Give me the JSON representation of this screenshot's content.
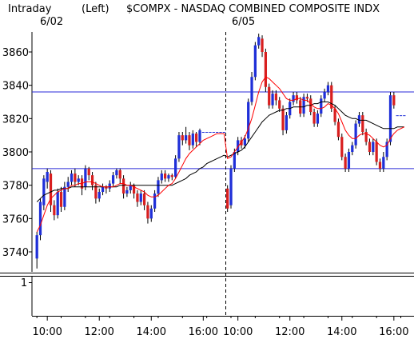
{
  "header": {
    "left_label": "Intraday",
    "panel_label": "(Left)",
    "title": "$COMPX - NASDAQ COMBINED COMPOSITE INDX",
    "date_1": "6/02",
    "date_2": "6/05"
  },
  "lower_panel": {
    "tick_label": "1"
  },
  "colors": {
    "up": "#1f2fd8",
    "down": "#d81f1f",
    "level_line": "#2a2ad8",
    "ma_short": "#ff0000",
    "ma_long": "#000000",
    "axis": "#000000",
    "grid_tick": "#000000"
  },
  "chart_data": {
    "type": "candlestick",
    "title": "$COMPX - NASDAQ COMBINED COMPOSITE INDX",
    "interval": "Intraday",
    "sessions": [
      "6/02",
      "6/05"
    ],
    "x_tick_labels": [
      "10:00",
      "12:00",
      "14:00",
      "16:00",
      "10:00",
      "12:00",
      "14:00",
      "16:00"
    ],
    "y_ticks": [
      3740,
      3760,
      3780,
      3800,
      3820,
      3840,
      3860
    ],
    "ylim": [
      3728,
      3872
    ],
    "grid": false,
    "horizontal_levels": [
      3836,
      3790
    ],
    "session_divider_after_index": 54,
    "candles": [
      [
        3736,
        3750,
        3730,
        3752
      ],
      [
        3750,
        3770,
        3747,
        3772
      ],
      [
        3768,
        3784,
        3765,
        3786
      ],
      [
        3782,
        3788,
        3778,
        3790
      ],
      [
        3787,
        3768,
        3764,
        3789
      ],
      [
        3768,
        3762,
        3759,
        3771
      ],
      [
        3762,
        3776,
        3760,
        3778
      ],
      [
        3776,
        3767,
        3764,
        3779
      ],
      [
        3767,
        3779,
        3765,
        3782
      ],
      [
        3779,
        3782,
        3776,
        3785
      ],
      [
        3782,
        3787,
        3780,
        3789
      ],
      [
        3787,
        3782,
        3779,
        3790
      ],
      [
        3782,
        3784,
        3780,
        3786
      ],
      [
        3784,
        3778,
        3774,
        3786
      ],
      [
        3779,
        3790,
        3777,
        3792
      ],
      [
        3790,
        3786,
        3783,
        3791
      ],
      [
        3786,
        3780,
        3777,
        3788
      ],
      [
        3780,
        3772,
        3769,
        3782
      ],
      [
        3772,
        3776,
        3770,
        3778
      ],
      [
        3776,
        3779,
        3774,
        3781
      ],
      [
        3779,
        3778,
        3775,
        3780
      ],
      [
        3778,
        3781,
        3776,
        3783
      ],
      [
        3781,
        3786,
        3779,
        3788
      ],
      [
        3786,
        3789,
        3784,
        3790
      ],
      [
        3789,
        3784,
        3781,
        3790
      ],
      [
        3784,
        3775,
        3772,
        3786
      ],
      [
        3775,
        3777,
        3773,
        3779
      ],
      [
        3777,
        3780,
        3775,
        3782
      ],
      [
        3780,
        3775,
        3772,
        3781
      ],
      [
        3775,
        3770,
        3767,
        3777
      ],
      [
        3770,
        3775,
        3768,
        3777
      ],
      [
        3775,
        3768,
        3765,
        3777
      ],
      [
        3768,
        3760,
        3757,
        3770
      ],
      [
        3760,
        3766,
        3758,
        3768
      ],
      [
        3766,
        3775,
        3764,
        3777
      ],
      [
        3775,
        3783,
        3773,
        3785
      ],
      [
        3783,
        3787,
        3781,
        3789
      ],
      [
        3787,
        3784,
        3782,
        3789
      ],
      [
        3784,
        3786,
        3782,
        3787
      ],
      [
        3786,
        3785,
        3783,
        3787
      ],
      [
        3785,
        3796,
        3784,
        3798
      ],
      [
        3796,
        3810,
        3794,
        3812
      ],
      [
        3810,
        3807,
        3804,
        3812
      ],
      [
        3807,
        3810,
        3805,
        3815
      ],
      [
        3810,
        3804,
        3801,
        3812
      ],
      [
        3804,
        3811,
        3802,
        3813
      ],
      [
        3811,
        3806,
        3803,
        3812
      ],
      [
        3806,
        3813,
        3804,
        3814
      ],
      [
        3812,
        3812,
        3812,
        3812
      ],
      [
        3812,
        3812,
        3812,
        3812
      ],
      [
        3812,
        3812,
        3812,
        3812
      ],
      [
        3812,
        3812,
        3812,
        3812
      ],
      [
        3812,
        3812,
        3812,
        3812
      ],
      [
        3812,
        3812,
        3812,
        3812
      ],
      [
        3812,
        3812,
        3812,
        3812
      ],
      [
        3778,
        3766,
        3764,
        3780
      ],
      [
        3768,
        3790,
        3766,
        3792
      ],
      [
        3790,
        3800,
        3788,
        3802
      ],
      [
        3800,
        3807,
        3798,
        3809
      ],
      [
        3807,
        3804,
        3802,
        3809
      ],
      [
        3804,
        3808,
        3802,
        3810
      ],
      [
        3808,
        3830,
        3806,
        3832
      ],
      [
        3830,
        3845,
        3828,
        3848
      ],
      [
        3845,
        3864,
        3843,
        3866
      ],
      [
        3864,
        3869,
        3862,
        3871
      ],
      [
        3868,
        3860,
        3857,
        3870
      ],
      [
        3860,
        3839,
        3836,
        3862
      ],
      [
        3839,
        3828,
        3826,
        3841
      ],
      [
        3828,
        3835,
        3826,
        3837
      ],
      [
        3835,
        3831,
        3828,
        3837
      ],
      [
        3831,
        3826,
        3824,
        3833
      ],
      [
        3826,
        3813,
        3810,
        3828
      ],
      [
        3813,
        3822,
        3811,
        3824
      ],
      [
        3822,
        3830,
        3820,
        3832
      ],
      [
        3830,
        3834,
        3828,
        3836
      ],
      [
        3834,
        3831,
        3829,
        3836
      ],
      [
        3831,
        3823,
        3821,
        3833
      ],
      [
        3823,
        3833,
        3821,
        3835
      ],
      [
        3833,
        3832,
        3830,
        3835
      ],
      [
        3832,
        3824,
        3822,
        3834
      ],
      [
        3824,
        3817,
        3815,
        3826
      ],
      [
        3817,
        3823,
        3815,
        3825
      ],
      [
        3823,
        3832,
        3821,
        3834
      ],
      [
        3832,
        3836,
        3830,
        3838
      ],
      [
        3836,
        3840,
        3834,
        3842
      ],
      [
        3840,
        3826,
        3824,
        3842
      ],
      [
        3826,
        3818,
        3816,
        3828
      ],
      [
        3818,
        3809,
        3807,
        3820
      ],
      [
        3809,
        3797,
        3795,
        3811
      ],
      [
        3797,
        3790,
        3788,
        3799
      ],
      [
        3790,
        3800,
        3788,
        3802
      ],
      [
        3800,
        3804,
        3798,
        3806
      ],
      [
        3804,
        3817,
        3802,
        3819
      ],
      [
        3817,
        3822,
        3815,
        3824
      ],
      [
        3822,
        3812,
        3810,
        3824
      ],
      [
        3812,
        3806,
        3804,
        3814
      ],
      [
        3806,
        3800,
        3798,
        3808
      ],
      [
        3800,
        3806,
        3798,
        3808
      ],
      [
        3806,
        3794,
        3792,
        3808
      ],
      [
        3794,
        3790,
        3788,
        3796
      ],
      [
        3790,
        3797,
        3788,
        3800
      ],
      [
        3797,
        3806,
        3795,
        3808
      ],
      [
        3806,
        3834,
        3804,
        3836
      ],
      [
        3834,
        3828,
        3826,
        3836
      ],
      [
        3822,
        3822,
        3822,
        3822
      ],
      [
        3822,
        3822,
        3822,
        3822
      ],
      [
        3822,
        3822,
        3822,
        3822
      ]
    ],
    "ma_short": [
      3752,
      3756,
      3762,
      3768,
      3772,
      3774,
      3776,
      3777,
      3778,
      3778,
      3780,
      3780,
      3781,
      3781,
      3782,
      3782,
      3782,
      3781,
      3780,
      3779,
      3779,
      3779,
      3779,
      3780,
      3781,
      3781,
      3780,
      3780,
      3779,
      3778,
      3777,
      3776,
      3774,
      3773,
      3773,
      3774,
      3776,
      3778,
      3780,
      3781,
      3784,
      3788,
      3792,
      3796,
      3799,
      3801,
      3803,
      3805,
      3807,
      3808,
      3809,
      3810,
      3811,
      3811,
      3811,
      3796,
      3797,
      3800,
      3803,
      3806,
      3809,
      3814,
      3820,
      3828,
      3836,
      3842,
      3845,
      3844,
      3842,
      3840,
      3838,
      3835,
      3832,
      3831,
      3831,
      3832,
      3832,
      3831,
      3831,
      3829,
      3827,
      3826,
      3826,
      3827,
      3829,
      3828,
      3826,
      3823,
      3818,
      3813,
      3810,
      3808,
      3808,
      3810,
      3811,
      3811,
      3810,
      3808,
      3806,
      3804,
      3803,
      3804,
      3808,
      3811,
      3813,
      3814,
      3815
    ],
    "ma_long": [
      3770,
      3772,
      3774,
      3775,
      3776,
      3777,
      3777,
      3778,
      3778,
      3778,
      3779,
      3779,
      3779,
      3779,
      3779,
      3779,
      3779,
      3779,
      3779,
      3779,
      3779,
      3779,
      3779,
      3779,
      3780,
      3780,
      3780,
      3780,
      3780,
      3780,
      3780,
      3780,
      3780,
      3780,
      3780,
      3780,
      3780,
      3780,
      3780,
      3780,
      3781,
      3782,
      3783,
      3784,
      3786,
      3787,
      3788,
      3790,
      3791,
      3793,
      3794,
      3795,
      3796,
      3797,
      3798,
      3797,
      3798,
      3799,
      3800,
      3801,
      3803,
      3806,
      3809,
      3812,
      3815,
      3818,
      3820,
      3822,
      3823,
      3824,
      3825,
      3825,
      3826,
      3826,
      3827,
      3827,
      3827,
      3827,
      3828,
      3828,
      3829,
      3829,
      3830,
      3830,
      3830,
      3829,
      3828,
      3826,
      3824,
      3822,
      3821,
      3820,
      3820,
      3819,
      3819,
      3819,
      3818,
      3817,
      3816,
      3815,
      3814,
      3814,
      3814,
      3814,
      3815,
      3815,
      3815
    ]
  }
}
